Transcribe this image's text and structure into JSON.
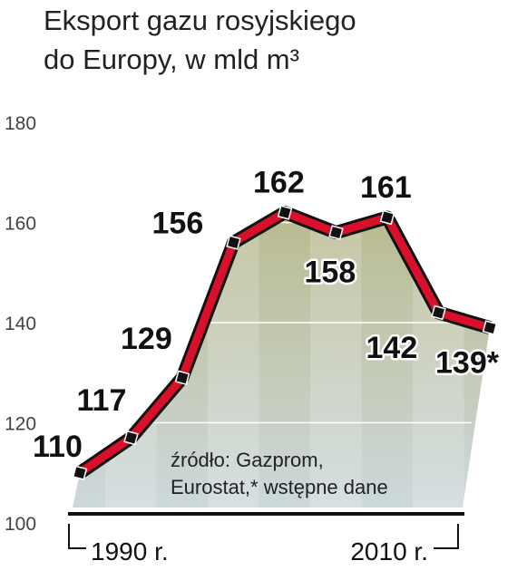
{
  "chart_data": {
    "type": "line",
    "title": [
      "Eksport gazu rosyjskiego",
      "do Europy, w mld m³"
    ],
    "categories": [
      "1990 r.",
      null,
      null,
      null,
      null,
      null,
      null,
      null,
      "2010 r."
    ],
    "series": [
      {
        "name": null,
        "color": "#d8102a",
        "values": [
          110,
          117,
          129,
          156,
          162,
          158,
          161,
          142,
          139
        ],
        "value_labels": [
          "110",
          "117",
          "129",
          "156",
          "162",
          "158",
          "161",
          "142",
          "139*"
        ]
      }
    ],
    "ylim": [
      100,
      180
    ],
    "yticks": [
      100,
      120,
      140,
      160,
      180
    ],
    "grid": true,
    "note": [
      "źródło: Gazprom,",
      "Eurostat,* wstępne dane"
    ]
  }
}
